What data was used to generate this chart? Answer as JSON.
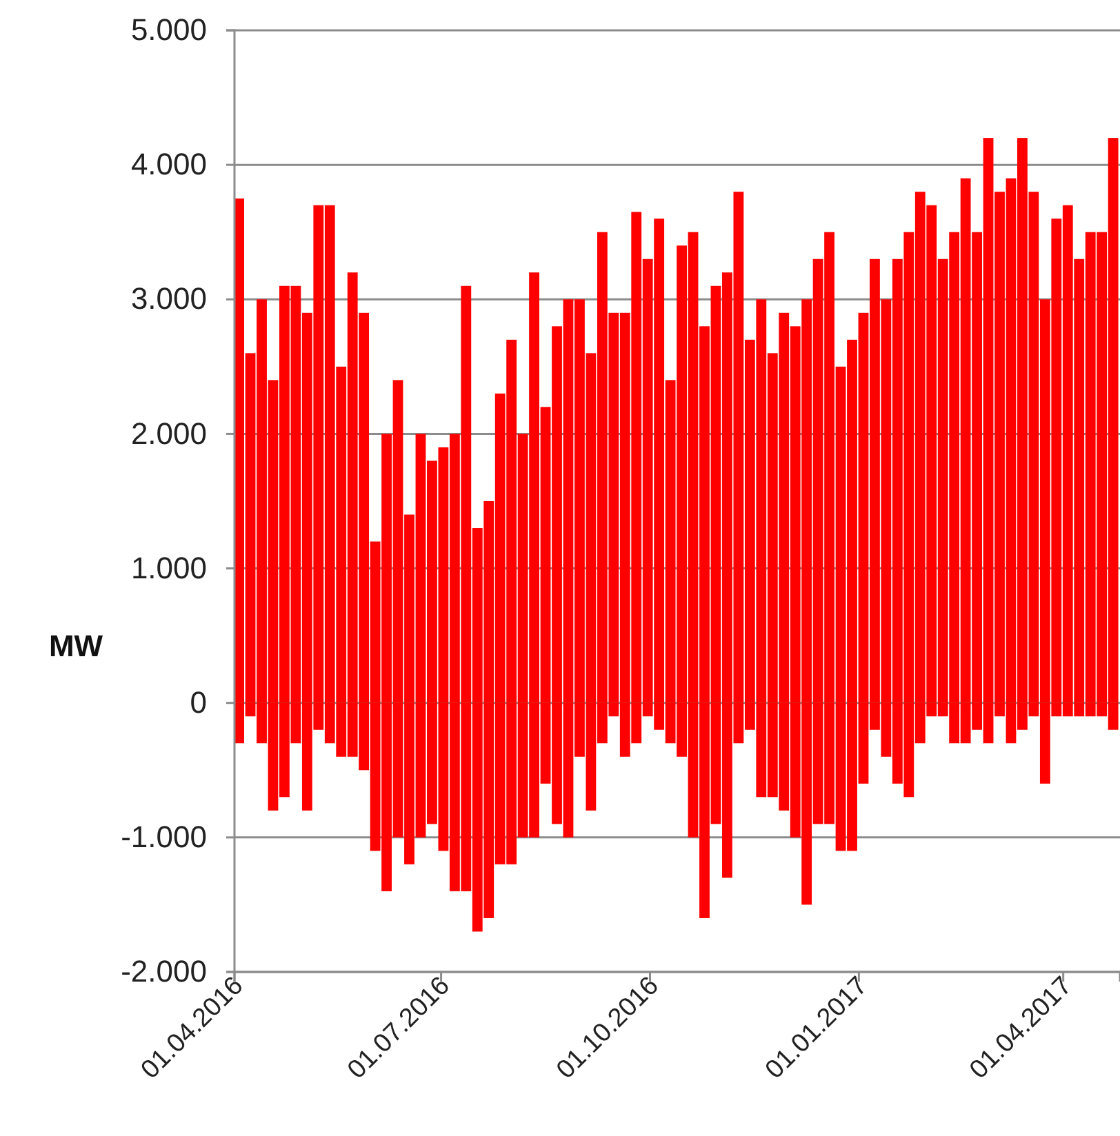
{
  "chart_data": {
    "type": "bar",
    "ylabel": "MW",
    "x": [
      "2016-04-03",
      "2016-04-08",
      "2016-04-13",
      "2016-04-18",
      "2016-04-23",
      "2016-04-28",
      "2016-05-03",
      "2016-05-08",
      "2016-05-13",
      "2016-05-18",
      "2016-05-23",
      "2016-05-28",
      "2016-06-02",
      "2016-06-07",
      "2016-06-12",
      "2016-06-17",
      "2016-06-22",
      "2016-06-27",
      "2016-07-02",
      "2016-07-07",
      "2016-07-12",
      "2016-07-17",
      "2016-07-22",
      "2016-07-27",
      "2016-08-01",
      "2016-08-06",
      "2016-08-11",
      "2016-08-16",
      "2016-08-21",
      "2016-08-26",
      "2016-08-31",
      "2016-09-05",
      "2016-09-10",
      "2016-09-15",
      "2016-09-20",
      "2016-09-25",
      "2016-09-30",
      "2016-10-05",
      "2016-10-10",
      "2016-10-15",
      "2016-10-20",
      "2016-10-25",
      "2016-10-30",
      "2016-11-04",
      "2016-11-09",
      "2016-11-14",
      "2016-11-19",
      "2016-11-24",
      "2016-11-29",
      "2016-12-04",
      "2016-12-09",
      "2016-12-14",
      "2016-12-19",
      "2016-12-24",
      "2016-12-29",
      "2017-01-03",
      "2017-01-08",
      "2017-01-13",
      "2017-01-18",
      "2017-01-23",
      "2017-01-28",
      "2017-02-02",
      "2017-02-07",
      "2017-02-12",
      "2017-02-17",
      "2017-02-22",
      "2017-02-27",
      "2017-03-04",
      "2017-03-09",
      "2017-03-14",
      "2017-03-19",
      "2017-03-24",
      "2017-03-29",
      "2017-04-03",
      "2017-04-08",
      "2017-04-13",
      "2017-04-18",
      "2017-04-23"
    ],
    "series": [
      {
        "color": "#ff0000",
        "values": [
          3750,
          2600,
          3000,
          2400,
          3100,
          3100,
          2900,
          3700,
          3700,
          2500,
          3200,
          2900,
          1200,
          2000,
          2400,
          1400,
          2000,
          1800,
          1900,
          2000,
          3100,
          1300,
          1500,
          2300,
          2700,
          2000,
          3200,
          2200,
          2800,
          3000,
          3000,
          2600,
          3500,
          2900,
          2900,
          3650,
          3300,
          3600,
          2400,
          3400,
          3500,
          2800,
          3100,
          3200,
          3800,
          2700,
          3000,
          2600,
          2900,
          2800,
          3000,
          3300,
          3500,
          2500,
          2700,
          2900,
          3300,
          3000,
          3300,
          3500,
          3800,
          3700,
          3300,
          3500,
          3900,
          3500,
          4200,
          3800,
          3900,
          4200,
          3800,
          3000,
          3600,
          3700,
          3300,
          3500,
          3500,
          4200
        ]
      },
      {
        "color": "#ff0000",
        "values": [
          -300,
          -100,
          -300,
          -800,
          -700,
          -300,
          -800,
          -200,
          -300,
          -400,
          -400,
          -500,
          -1100,
          -1400,
          -1000,
          -1200,
          -1000,
          -900,
          -1100,
          -1400,
          -1400,
          -1700,
          -1600,
          -1200,
          -1200,
          -1000,
          -1000,
          -600,
          -900,
          -1000,
          -400,
          -800,
          -300,
          -100,
          -400,
          -300,
          -100,
          -200,
          -300,
          -400,
          -1000,
          -1600,
          -900,
          -1300,
          -300,
          -200,
          -700,
          -700,
          -800,
          -1000,
          -1500,
          -900,
          -900,
          -1100,
          -1100,
          -600,
          -200,
          -400,
          -600,
          -700,
          -300,
          -100,
          -100,
          -300,
          -300,
          -200,
          -300,
          -100,
          -300,
          -200,
          -100,
          -600,
          -100,
          -100,
          -100,
          -100,
          -100,
          -200
        ]
      }
    ],
    "xlim": [
      "2016-04-01",
      "2017-04-26"
    ],
    "xticks": [
      {
        "value": "2016-04-01",
        "label": "01.04.2016"
      },
      {
        "value": "2016-07-01",
        "label": "01.07.2016"
      },
      {
        "value": "2016-10-01",
        "label": "01.10.2016"
      },
      {
        "value": "2017-01-01",
        "label": "01.01.2017"
      },
      {
        "value": "2017-04-01",
        "label": "01.04.2017"
      }
    ],
    "ylim": [
      -2000,
      5000
    ],
    "yticks": [
      {
        "value": -2000,
        "label": "-2.000"
      },
      {
        "value": -1000,
        "label": "-1.000"
      },
      0,
      {
        "value": 1000,
        "label": "1.000"
      },
      {
        "value": 2000,
        "label": "2.000"
      },
      {
        "value": 3000,
        "label": "3.000"
      },
      {
        "value": 4000,
        "label": "4.000"
      },
      {
        "value": 5000,
        "label": "5.000"
      }
    ],
    "grid": "y",
    "stacked": true
  }
}
